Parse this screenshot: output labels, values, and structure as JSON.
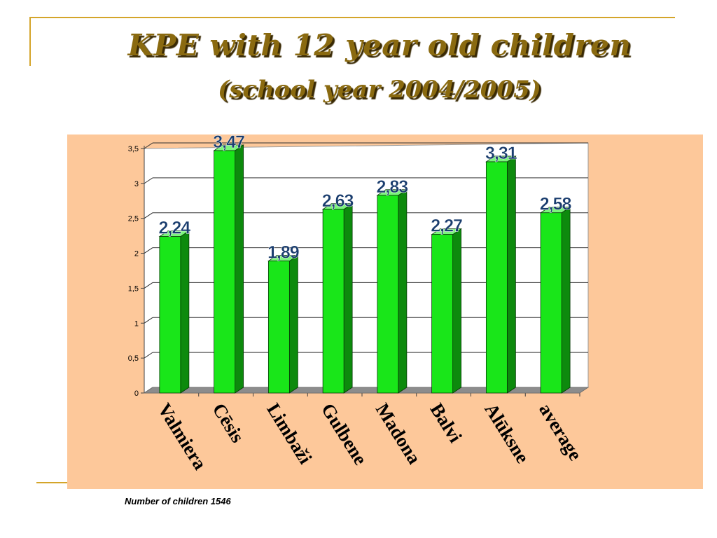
{
  "slide": {
    "title": "KPE with 12 year old children",
    "subtitle": "(school year 2004/2005)",
    "footnote": "Number of children 1546"
  },
  "colors": {
    "accent_rule": "#d4a52a",
    "title_text": "#8a6a10",
    "panel_bg": "#fdc89a",
    "bar_front": "#19e619",
    "bar_side": "#0d8a0d",
    "bar_top": "#7cf57c",
    "floor": "#8c8c8c",
    "data_label": "#1a3d6e"
  },
  "chart_data": {
    "type": "bar",
    "categories": [
      "Valmiera",
      "Cēsis",
      "Limbaži",
      "Gulbene",
      "Madona",
      "Balvi",
      "Alūksne",
      "average"
    ],
    "values": [
      2.24,
      3.47,
      1.89,
      2.63,
      2.83,
      2.27,
      3.31,
      2.58
    ],
    "data_labels": [
      "2,24",
      "3,47",
      "1,89",
      "2,63",
      "2,83",
      "2,27",
      "3,31",
      "2,58"
    ],
    "yticks": [
      "0",
      "0,5",
      "1",
      "1,5",
      "2",
      "2,5",
      "3",
      "3,5"
    ],
    "ytick_values": [
      0,
      0.5,
      1,
      1.5,
      2,
      2.5,
      3,
      3.5
    ],
    "ylim": [
      0,
      3.5
    ],
    "grid": true,
    "legend": "none",
    "style": "3d-column"
  }
}
